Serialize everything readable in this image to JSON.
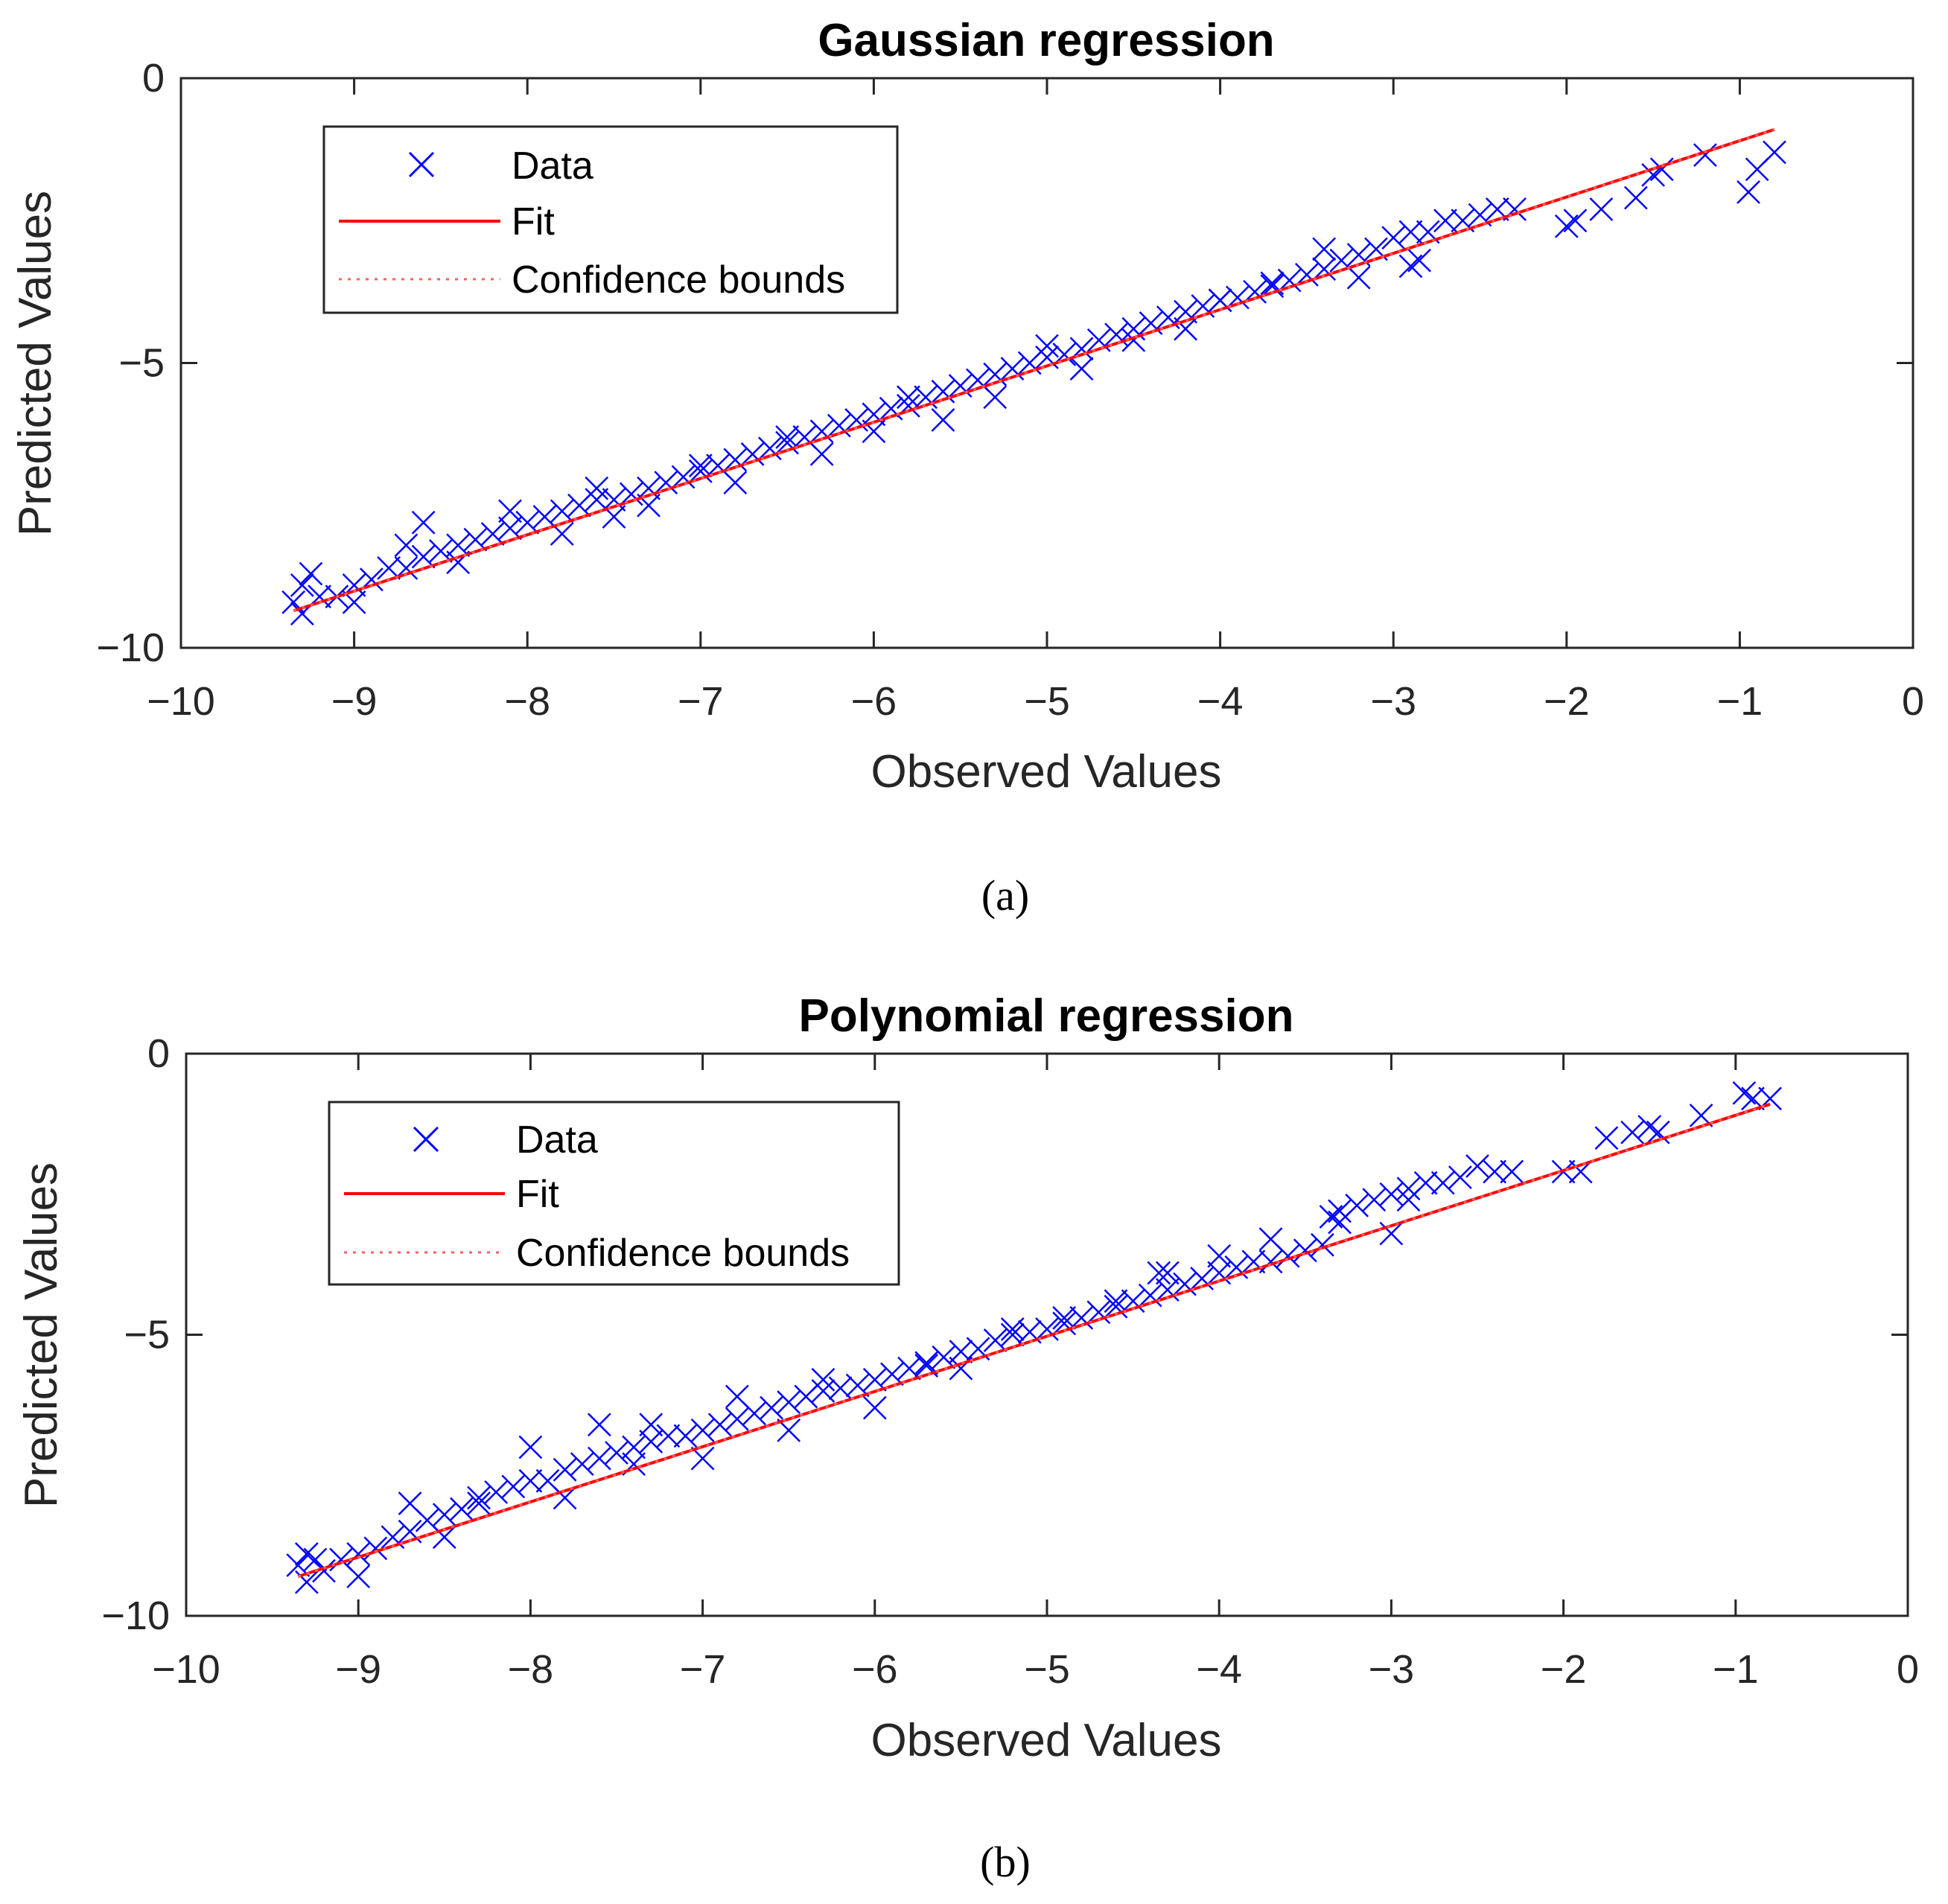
{
  "chart_data": [
    {
      "type": "scatter",
      "title": "Gaussian regression",
      "xlabel": "Observed Values",
      "ylabel": "Predicted Values",
      "xlim": [
        -10,
        0
      ],
      "ylim": [
        -10,
        0
      ],
      "x_ticks": [
        -10,
        -9,
        -8,
        -7,
        -6,
        -5,
        -4,
        -3,
        -2,
        -1,
        0
      ],
      "x_tick_labels": [
        "−10",
        "−9",
        "−8",
        "−7",
        "−6",
        "−5",
        "−4",
        "−3",
        "−2",
        "−1",
        "0"
      ],
      "y_ticks": [
        0,
        -5,
        -10
      ],
      "y_tick_labels": [
        "0",
        "−5",
        "−10"
      ],
      "legend": {
        "position": "top-left",
        "entries": [
          {
            "label": "Data",
            "marker": "x",
            "color": "#0000ff"
          },
          {
            "label": "Fit",
            "line": "solid",
            "color": "#ff0000"
          },
          {
            "label": "Confidence bounds",
            "line": "dotted",
            "color": "#ff0000"
          }
        ]
      },
      "fit_line": {
        "x": [
          -9.35,
          -0.8
        ],
        "y": [
          -9.35,
          -0.9
        ]
      },
      "series": [
        {
          "name": "Data",
          "x": [
            -9.35,
            -9.3,
            -9.25,
            -9.2,
            -9.1,
            -9.0,
            -8.9,
            -8.8,
            -8.7,
            -8.6,
            -8.5,
            -8.4,
            -8.3,
            -8.2,
            -8.1,
            -8.0,
            -7.9,
            -7.8,
            -7.7,
            -7.6,
            -7.5,
            -7.4,
            -7.3,
            -7.2,
            -7.1,
            -7.0,
            -6.9,
            -6.8,
            -6.7,
            -6.6,
            -6.5,
            -6.4,
            -6.3,
            -6.2,
            -6.1,
            -6.0,
            -5.9,
            -5.8,
            -5.7,
            -5.6,
            -5.5,
            -5.4,
            -5.3,
            -5.2,
            -5.1,
            -5.0,
            -4.9,
            -4.8,
            -4.7,
            -4.6,
            -4.5,
            -4.4,
            -4.3,
            -4.2,
            -4.1,
            -4.0,
            -3.9,
            -3.8,
            -3.7,
            -3.6,
            -3.5,
            -3.4,
            -3.3,
            -3.2,
            -3.1,
            -3.0,
            -2.9,
            -2.8,
            -2.7,
            -2.6,
            -2.5,
            -2.4,
            -2.3,
            -2.0,
            -1.95,
            -1.8,
            -1.6,
            -1.5,
            -1.45,
            -1.2,
            -0.95,
            -0.9,
            -0.8,
            -9.3,
            -9.0,
            -8.7,
            -8.6,
            -8.4,
            -8.1,
            -7.8,
            -7.6,
            -7.5,
            -7.3,
            -7.0,
            -6.8,
            -6.5,
            -6.3,
            -6.0,
            -5.8,
            -5.6,
            -5.3,
            -5.0,
            -4.8,
            -4.5,
            -4.2,
            -4.0,
            -3.7,
            -3.4,
            -3.2,
            -2.9,
            -2.85
          ],
          "y": [
            -9.2,
            -9.4,
            -8.7,
            -9.1,
            -9.1,
            -8.9,
            -8.8,
            -8.6,
            -8.6,
            -8.4,
            -8.3,
            -8.2,
            -8.1,
            -8.0,
            -7.9,
            -7.8,
            -7.7,
            -7.6,
            -7.5,
            -7.4,
            -7.4,
            -7.3,
            -7.2,
            -7.1,
            -7.0,
            -6.9,
            -6.8,
            -6.7,
            -6.6,
            -6.5,
            -6.4,
            -6.3,
            -6.2,
            -6.1,
            -6.0,
            -5.9,
            -5.8,
            -5.75,
            -5.6,
            -5.5,
            -5.4,
            -5.3,
            -5.2,
            -5.1,
            -5.0,
            -4.9,
            -4.85,
            -4.75,
            -4.6,
            -4.5,
            -4.4,
            -4.3,
            -4.2,
            -4.1,
            -4.0,
            -3.9,
            -3.85,
            -3.75,
            -3.65,
            -3.55,
            -3.45,
            -3.35,
            -3.2,
            -3.1,
            -3.0,
            -2.8,
            -2.7,
            -2.7,
            -2.5,
            -2.5,
            -2.4,
            -2.3,
            -2.3,
            -2.6,
            -2.5,
            -2.3,
            -2.1,
            -1.7,
            -1.6,
            -1.35,
            -2.0,
            -1.6,
            -1.3,
            -8.9,
            -9.2,
            -8.2,
            -7.8,
            -8.5,
            -7.6,
            -8.0,
            -7.2,
            -7.7,
            -7.5,
            -6.8,
            -7.1,
            -6.3,
            -6.6,
            -6.2,
            -5.6,
            -6.0,
            -5.6,
            -4.7,
            -5.1,
            -4.6,
            -4.4,
            -3.9,
            -3.6,
            -3.0,
            -3.5,
            -3.3,
            -3.2
          ]
        }
      ],
      "caption": "(a)"
    },
    {
      "type": "scatter",
      "title": "Polynomial regression",
      "xlabel": "Observed Values",
      "ylabel": "Predicted Values",
      "xlim": [
        -10,
        0
      ],
      "ylim": [
        -10,
        0
      ],
      "x_ticks": [
        -10,
        -9,
        -8,
        -7,
        -6,
        -5,
        -4,
        -3,
        -2,
        -1,
        0
      ],
      "x_tick_labels": [
        "−10",
        "−9",
        "−8",
        "−7",
        "−6",
        "−5",
        "−4",
        "−3",
        "−2",
        "−1",
        "0"
      ],
      "y_ticks": [
        0,
        -5,
        -10
      ],
      "y_tick_labels": [
        "0",
        "−5",
        "−10"
      ],
      "legend": {
        "position": "top-left",
        "entries": [
          {
            "label": "Data",
            "marker": "x",
            "color": "#0000ff"
          },
          {
            "label": "Fit",
            "line": "solid",
            "color": "#ff0000"
          },
          {
            "label": "Confidence bounds",
            "line": "dotted",
            "color": "#ff0000"
          }
        ]
      },
      "fit_line": {
        "x": [
          -9.35,
          -0.8
        ],
        "y": [
          -9.3,
          -0.9
        ]
      },
      "series": [
        {
          "name": "Data",
          "x": [
            -9.35,
            -9.3,
            -9.25,
            -9.2,
            -9.1,
            -9.0,
            -8.9,
            -8.8,
            -8.7,
            -8.6,
            -8.5,
            -8.4,
            -8.3,
            -8.2,
            -8.1,
            -8.0,
            -7.9,
            -7.8,
            -7.7,
            -7.6,
            -7.5,
            -7.4,
            -7.3,
            -7.2,
            -7.1,
            -7.0,
            -6.9,
            -6.8,
            -6.7,
            -6.6,
            -6.5,
            -6.4,
            -6.3,
            -6.2,
            -6.1,
            -6.0,
            -5.9,
            -5.8,
            -5.7,
            -5.6,
            -5.5,
            -5.4,
            -5.3,
            -5.2,
            -5.1,
            -5.0,
            -4.9,
            -4.8,
            -4.7,
            -4.6,
            -4.5,
            -4.4,
            -4.35,
            -4.3,
            -4.2,
            -4.1,
            -4.0,
            -3.9,
            -3.8,
            -3.7,
            -3.6,
            -3.5,
            -3.4,
            -3.35,
            -3.3,
            -3.2,
            -3.1,
            -3.0,
            -2.9,
            -2.8,
            -2.7,
            -2.6,
            -2.5,
            -2.4,
            -2.3,
            -2.0,
            -1.9,
            -1.75,
            -1.6,
            -1.5,
            -1.45,
            -1.2,
            -0.95,
            -0.9,
            -0.8,
            -9.3,
            -9.0,
            -8.7,
            -8.5,
            -8.3,
            -8.0,
            -7.8,
            -7.6,
            -7.4,
            -7.3,
            -7.0,
            -6.8,
            -6.5,
            -6.3,
            -6.0,
            -5.7,
            -5.5,
            -5.2,
            -4.9,
            -4.6,
            -4.3,
            -4.0,
            -3.7,
            -3.3,
            -3.0,
            -2.9
          ],
          "y": [
            -9.1,
            -9.4,
            -9.0,
            -9.2,
            -9.0,
            -8.9,
            -8.8,
            -8.6,
            -8.5,
            -8.3,
            -8.2,
            -8.1,
            -8.0,
            -7.8,
            -7.7,
            -7.6,
            -7.6,
            -7.4,
            -7.3,
            -7.2,
            -7.1,
            -7.0,
            -6.9,
            -6.8,
            -6.8,
            -6.7,
            -6.6,
            -6.5,
            -6.4,
            -6.3,
            -6.2,
            -6.1,
            -6.0,
            -5.95,
            -5.9,
            -5.8,
            -5.7,
            -5.6,
            -5.55,
            -5.4,
            -5.3,
            -5.25,
            -5.1,
            -5.0,
            -4.95,
            -4.9,
            -4.8,
            -4.7,
            -4.6,
            -4.5,
            -4.4,
            -4.3,
            -3.9,
            -4.2,
            -4.1,
            -4.0,
            -3.9,
            -3.8,
            -3.7,
            -3.7,
            -3.6,
            -3.5,
            -3.4,
            -2.9,
            -2.8,
            -2.7,
            -2.6,
            -2.5,
            -2.4,
            -2.3,
            -2.3,
            -2.2,
            -2.0,
            -2.1,
            -2.1,
            -2.1,
            -2.1,
            -1.5,
            -1.4,
            -1.3,
            -1.4,
            -1.1,
            -0.7,
            -0.8,
            -0.8,
            -8.9,
            -9.3,
            -8.0,
            -8.6,
            -7.9,
            -7.0,
            -7.9,
            -6.6,
            -7.3,
            -6.6,
            -7.2,
            -6.1,
            -6.7,
            -5.8,
            -6.3,
            -5.5,
            -5.6,
            -4.9,
            -4.7,
            -4.4,
            -3.9,
            -3.6,
            -3.3,
            -3.0,
            -3.2,
            -2.6
          ]
        }
      ],
      "caption": "(b)"
    }
  ]
}
